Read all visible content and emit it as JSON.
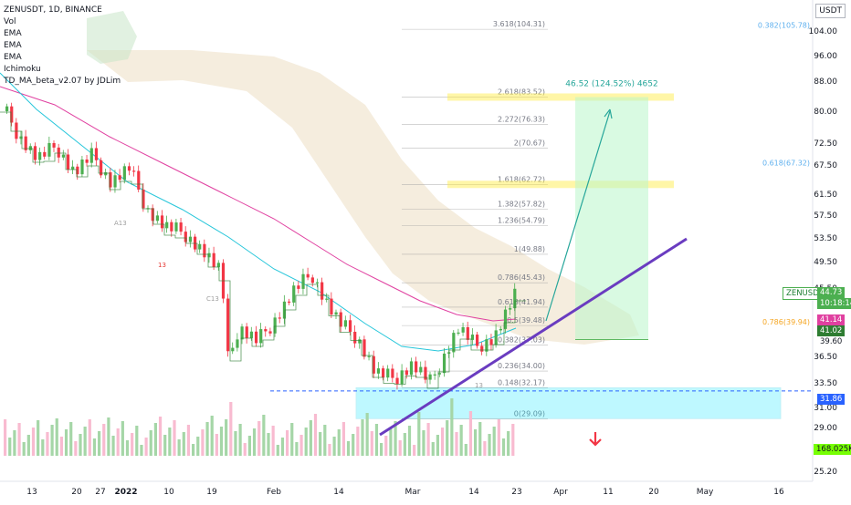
{
  "legend": {
    "symbol": "ZENUSDT, 1D, BINANCE",
    "indicators": [
      "Vol",
      "EMA",
      "EMA",
      "EMA",
      "Ichimoku",
      "TD_MA_beta_v2.07 by JDLim"
    ]
  },
  "currency": "USDT",
  "price_axis": {
    "ticks": [
      "104.00",
      "96.00",
      "88.00",
      "80.00",
      "72.50",
      "67.50",
      "61.50",
      "57.50",
      "53.50",
      "49.50",
      "45.50",
      "36.50",
      "33.50",
      "31.00",
      "29.00",
      "25.20"
    ]
  },
  "badges": {
    "symbol": "ZENUSDT",
    "last_price": "44.73",
    "countdown": "10:18:14",
    "ema_a": "41.14",
    "ema_b": "41.02",
    "level_a": "39.60",
    "level_dashed": "31.86",
    "volume": "168.025K"
  },
  "fib_levels": [
    {
      "label": "3.618(104.31)",
      "value": 104.31
    },
    {
      "label": "2.618(83.52)",
      "value": 83.52
    },
    {
      "label": "2.272(76.33)",
      "value": 76.33
    },
    {
      "label": "2(70.67)",
      "value": 70.67
    },
    {
      "label": "1.618(62.72)",
      "value": 62.72
    },
    {
      "label": "1.382(57.82)",
      "value": 57.82
    },
    {
      "label": "1.236(54.79)",
      "value": 54.79
    },
    {
      "label": "1(49.88)",
      "value": 49.88
    },
    {
      "label": "0.786(45.43)",
      "value": 45.43
    },
    {
      "label": "0.618(41.94)",
      "value": 41.94
    },
    {
      "label": "0.5(39.48)",
      "value": 39.48
    },
    {
      "label": "0.382(37.03)",
      "value": 37.03
    },
    {
      "label": "0.236(34.00)",
      "value": 34.0
    },
    {
      "label": "0.148(32.17)",
      "value": 32.17
    },
    {
      "label": "0(29.09)",
      "value": 29.09
    }
  ],
  "fib_right": [
    {
      "label": "0.382(105.78)",
      "value": 105.78,
      "color": "#5fb0ee"
    },
    {
      "label": "0.618(67.32)",
      "value": 67.32,
      "color": "#5fb0ee"
    },
    {
      "label": "0.786(39.94)",
      "value": 39.94,
      "color": "#f5a623"
    }
  ],
  "projection": {
    "label": "46.52 (124.52%) 4652"
  },
  "td_labels": [
    "13",
    "A13",
    "C13",
    "13"
  ],
  "colors": {
    "up": "#4caf50",
    "down": "#f23645",
    "ema_pink": "#e040a0",
    "ema_teal": "#26c6da",
    "td_line": "#2e7d32",
    "support": "#6a3cc0",
    "zone": "#00e5ff",
    "target": "#b9f6ca"
  },
  "chart_data": {
    "type": "candlestick",
    "x_ticks": [
      "13",
      "20",
      "27",
      "2022",
      "10",
      "19",
      "Feb",
      "14",
      "Mar",
      "14",
      "23",
      "Apr",
      "11",
      "20",
      "May",
      "16"
    ],
    "y_axis": "log",
    "ylim": [
      25.2,
      110
    ],
    "fibonacci": "3.618 … 0 levels listed in fib_levels",
    "annotations": [
      "support trendline",
      "target zone 83.52",
      "demand zone 29.09 – 31.86"
    ]
  }
}
